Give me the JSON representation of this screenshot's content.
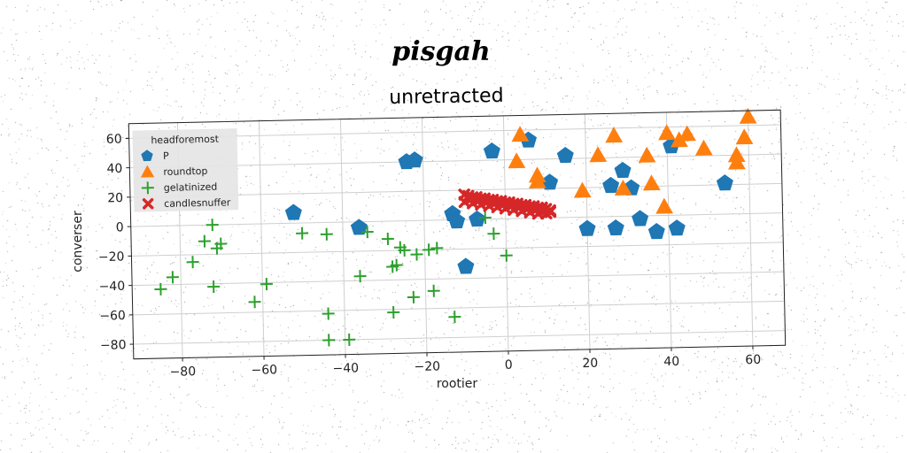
{
  "chart_data": {
    "type": "scatter",
    "suptitle": "pisgah",
    "title": "unretracted",
    "xlabel": "rootier",
    "ylabel": "converser",
    "xlim": [
      -92,
      68
    ],
    "ylim": [
      -90,
      70
    ],
    "xticks": [
      -80,
      -60,
      -40,
      -20,
      0,
      20,
      40,
      60
    ],
    "yticks": [
      -80,
      -60,
      -40,
      -20,
      0,
      20,
      40,
      60
    ],
    "grid": true,
    "legend": {
      "title": "headforemost",
      "position": "top-left"
    },
    "series": [
      {
        "name": "P",
        "marker": "pentagon",
        "color": "#1f77b4",
        "points": [
          [
            -52,
            7
          ],
          [
            -36,
            -4
          ],
          [
            -24,
            40
          ],
          [
            -22,
            41
          ],
          [
            -13,
            4
          ],
          [
            -12,
            -1
          ],
          [
            -10,
            -32
          ],
          [
            -7,
            0
          ],
          [
            -3,
            46
          ],
          [
            6,
            53
          ],
          [
            11,
            24
          ],
          [
            15,
            42
          ],
          [
            20,
            -8
          ],
          [
            26,
            21
          ],
          [
            27,
            -8
          ],
          [
            29,
            31
          ],
          [
            31,
            19
          ],
          [
            33,
            -2
          ],
          [
            37,
            -11
          ],
          [
            41,
            47
          ],
          [
            42,
            -9
          ],
          [
            54,
            21
          ]
        ]
      },
      {
        "name": "roundtop",
        "marker": "triangle",
        "color": "#ff7f0e",
        "points": [
          [
            3,
            39
          ],
          [
            4,
            57
          ],
          [
            8,
            25
          ],
          [
            8,
            29
          ],
          [
            19,
            18
          ],
          [
            23,
            42
          ],
          [
            27,
            55
          ],
          [
            29,
            19
          ],
          [
            35,
            41
          ],
          [
            36,
            22
          ],
          [
            39,
            6
          ],
          [
            40,
            56
          ],
          [
            43,
            51
          ],
          [
            45,
            55
          ],
          [
            49,
            45
          ],
          [
            57,
            35
          ],
          [
            57,
            40
          ],
          [
            59,
            52
          ],
          [
            60,
            66
          ]
        ]
      },
      {
        "name": "gelatinized",
        "marker": "plus",
        "color": "#2ca02c",
        "points": [
          [
            -85,
            -43
          ],
          [
            -82,
            -35
          ],
          [
            -77,
            -25
          ],
          [
            -74,
            -11
          ],
          [
            -72,
            0
          ],
          [
            -72,
            -42
          ],
          [
            -71,
            -16
          ],
          [
            -70,
            -13
          ],
          [
            -62,
            -53
          ],
          [
            -59,
            -41
          ],
          [
            -50,
            -7
          ],
          [
            -44,
            -8
          ],
          [
            -44,
            -62
          ],
          [
            -44,
            -80
          ],
          [
            -39,
            -80
          ],
          [
            -36,
            -37
          ],
          [
            -34,
            -7
          ],
          [
            -29,
            -12
          ],
          [
            -28,
            -31
          ],
          [
            -28,
            -62
          ],
          [
            -27,
            -30
          ],
          [
            -26,
            -18
          ],
          [
            -25,
            -20
          ],
          [
            -23,
            -52
          ],
          [
            -22,
            -23
          ],
          [
            -19,
            -20
          ],
          [
            -18,
            -48
          ],
          [
            -17,
            -19
          ],
          [
            -13,
            -66
          ],
          [
            -5,
            1
          ],
          [
            -3,
            -10
          ],
          [
            0,
            -25
          ]
        ]
      },
      {
        "name": "candlesnuffer",
        "marker": "x",
        "color": "#d62728",
        "points": [
          [
            -10,
            17
          ],
          [
            -9,
            16
          ],
          [
            -8,
            15
          ],
          [
            -7,
            15
          ],
          [
            -6,
            14
          ],
          [
            -5,
            14
          ],
          [
            -4,
            13
          ],
          [
            -3,
            13
          ],
          [
            -2,
            12
          ],
          [
            -1,
            12
          ],
          [
            0,
            11
          ],
          [
            1,
            11
          ],
          [
            2,
            10
          ],
          [
            3,
            10
          ],
          [
            4,
            9
          ],
          [
            5,
            9
          ],
          [
            6,
            8
          ],
          [
            7,
            8
          ],
          [
            8,
            7
          ],
          [
            9,
            7
          ],
          [
            10,
            6
          ],
          [
            -10,
            12
          ],
          [
            -8,
            11
          ],
          [
            -6,
            10
          ],
          [
            -4,
            9
          ],
          [
            -2,
            8
          ],
          [
            0,
            7
          ],
          [
            2,
            6
          ],
          [
            4,
            5
          ],
          [
            6,
            4
          ],
          [
            8,
            3
          ],
          [
            10,
            3
          ],
          [
            11,
            4
          ],
          [
            -9,
            14
          ],
          [
            -7,
            13
          ],
          [
            -5,
            12
          ],
          [
            -3,
            11
          ],
          [
            -1,
            10
          ],
          [
            1,
            9
          ],
          [
            3,
            8
          ],
          [
            5,
            7
          ],
          [
            7,
            6
          ],
          [
            9,
            5
          ],
          [
            11,
            5
          ]
        ]
      }
    ]
  }
}
